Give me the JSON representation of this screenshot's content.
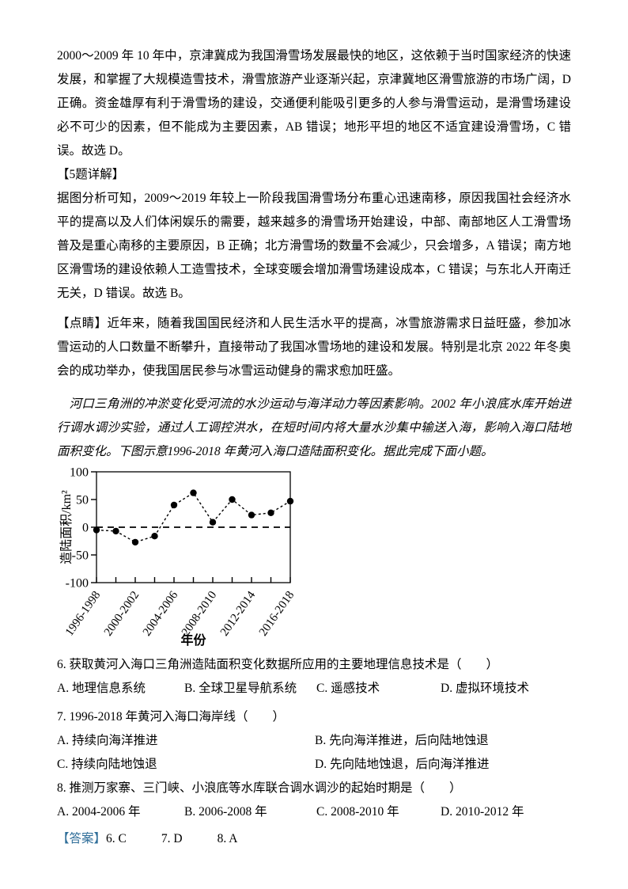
{
  "page": {
    "background": "#ffffff",
    "accent_blue": "#2F6E99",
    "text_color": "#000000"
  },
  "content": {
    "q4_explanation": "2000～2009 年 10 年中，京津冀成为我国滑雪场发展最快的地区，这依赖于当时国家经济的快速发展，和掌握了大规模造雪技术，滑雪旅游产业逐渐兴起，京津冀地区滑雪旅游的市场广阔，D 正确。资金雄厚有利于滑雪场的建设，交通便利能吸引更多的人参与滑雪运动，是滑雪场建设必不可少的因素，但不能成为主要因素，AB 错误；地形平坦的地区不适宜建设滑雪场，C 错误。故选 D。",
    "q5_label": "【5题详解】",
    "q5_explanation": "据图分析可知，2009～2019 年较上一阶段我国滑雪场分布重心迅速南移，原因我国社会经济水平的提高以及人们体闲娱乐的需要，越来越多的滑雪场开始建设，中部、南部地区人工滑雪场普及是重心南移的主要原因，B 正确；北方滑雪场的数量不会减少，只会增多，A 错误；南方地区滑雪场的建设依赖人工造雪技术，全球变暖会增加滑雪场建设成本，C 错误；与东北人开南迁无关，D 错误。故选 B。",
    "tip": "【点睛】近年来，随着我国国民经济和人民生活水平的提高，冰雪旅游需求日益旺盛，参加冰雪运动的人口数量不断攀升，直接带动了我国冰雪场地的建设和发展。特别是北京 2022 年冬奥会的成功举办，使我国居民参与冰雪运动健身的需求愈加旺盛。",
    "passage": "河口三角洲的冲淤变化受河流的水沙运动与海洋动力等因素影响。2002 年小浪底水库开始进行调水调沙实验，通过人工调控洪水，在短时间内将大量水沙集中输送入海，影响入海口陆地面积变化。下图示意1996-2018 年黄河入海口造陆面积变化。据此完成下面小题。"
  },
  "questions": [
    {
      "stem": "6. 获取黄河入海口三角洲造陆面积变化数据所应用的主要地理信息技术是（　　）",
      "options": [
        "A. 地理信息系统",
        "B. 全球卫星导航系统",
        "C. 遥感技术",
        "D. 虚拟环境技术"
      ]
    },
    {
      "stem": "7. 1996-2018 年黄河入海口海岸线（　　）",
      "options": [
        "A. 持续向海洋推进",
        "B. 先向海洋推进，后向陆地蚀退",
        "C. 持续向陆地蚀退",
        "D. 先向陆地蚀退，后向海洋推进"
      ]
    },
    {
      "stem": "8. 推测万家寨、三门峡、小浪底等水库联合调水调沙的起始时期是（　　）",
      "options": [
        "A. 2004-2006 年",
        "B. 2006-2008 年",
        "C. 2008-2010 年",
        "D. 2010-2012 年"
      ]
    }
  ],
  "answer_key": {
    "label": "【答案】",
    "items": [
      "6. C",
      "7. D",
      "8. A"
    ]
  },
  "chart_data": {
    "type": "line",
    "title": "",
    "xlabel": "年份",
    "ylabel": "造陆面积/km²",
    "ylim": [
      -100,
      100
    ],
    "yticks": [
      100,
      50,
      0,
      -50,
      -100
    ],
    "x_periods": [
      "1996-1998",
      "1998-2000",
      "2000-2002",
      "2002-2004",
      "2004-2006",
      "2006-2008",
      "2008-2010",
      "2010-2012",
      "2012-2014",
      "2014-2016",
      "2016-2018"
    ],
    "x_tick_labels": [
      "1996-1998",
      "2000-2002",
      "2004-2006",
      "2008-2010",
      "2012-2014",
      "2016-2018"
    ],
    "values": [
      -5,
      -7,
      -27,
      -16,
      40,
      62,
      9,
      50,
      22,
      26,
      47
    ],
    "line_style": "dashed",
    "marker": "filled-circle",
    "zero_line": "dashed",
    "grid": false,
    "legend": false
  }
}
